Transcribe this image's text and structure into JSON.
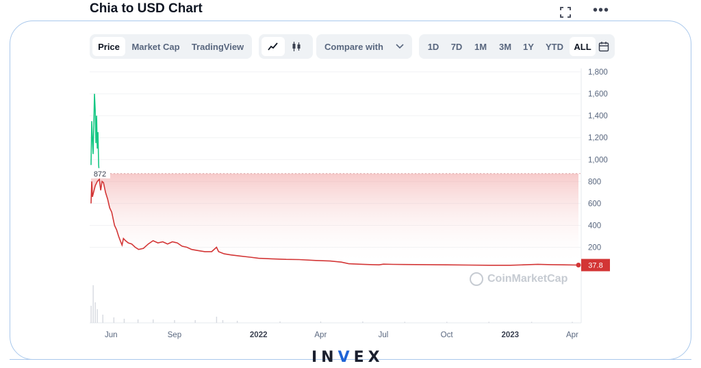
{
  "page": {
    "title": "Chia to USD Chart"
  },
  "toolbar": {
    "type_tabs": [
      "Price",
      "Market Cap",
      "TradingView"
    ],
    "active_type": "Price",
    "mode_icons": [
      "line-chart-icon",
      "candlestick-icon"
    ],
    "compare_label": "Compare with",
    "ranges": [
      "1D",
      "7D",
      "1M",
      "3M",
      "1Y",
      "YTD",
      "ALL"
    ],
    "active_range": "ALL"
  },
  "watermark": "CoinMarketCap",
  "brand": {
    "prefix": "IN",
    "mark": "V",
    "suffix": "EX"
  },
  "colors": {
    "up": "#16c784",
    "down": "#d33535",
    "reference_line": "#d9a0a0",
    "frame": "#a9c8ec",
    "brand_accent": "#1e63d6"
  },
  "chart_data": {
    "type": "line",
    "x_tick_labels": [
      "Jun",
      "Sep",
      "2022",
      "Apr",
      "Jul",
      "Oct",
      "2023",
      "Apr"
    ],
    "x_tick_dates": [
      "2021-06-01",
      "2021-09-01",
      "2022-01-01",
      "2022-04-01",
      "2022-07-01",
      "2022-10-01",
      "2023-01-01",
      "2023-04-01"
    ],
    "y_ticks": [
      200,
      400,
      600,
      800,
      1000,
      1200,
      1400,
      1600,
      1800
    ],
    "ylim": [
      -40,
      1800
    ],
    "reference_value": 872,
    "reference_label": "872",
    "current_price": 37.8,
    "current_label": "37.8",
    "grid": true,
    "series": [
      {
        "values": [
          [
            "2021-05-03",
            950
          ],
          [
            "2021-05-04",
            1350
          ],
          [
            "2021-05-05",
            1200
          ],
          [
            "2021-05-06",
            1050
          ],
          [
            "2021-05-07",
            1300
          ],
          [
            "2021-05-08",
            1600
          ],
          [
            "2021-05-09",
            1450
          ],
          [
            "2021-05-10",
            1150
          ],
          [
            "2021-05-11",
            1400
          ],
          [
            "2021-05-12",
            1100
          ],
          [
            "2021-05-13",
            1250
          ],
          [
            "2021-05-14",
            950
          ],
          [
            "2021-05-15",
            870
          ]
        ]
      },
      {
        "values": [
          [
            "2021-05-03",
            600
          ],
          [
            "2021-05-04",
            800
          ],
          [
            "2021-05-05",
            660
          ],
          [
            "2021-05-09",
            760
          ],
          [
            "2021-05-12",
            800
          ],
          [
            "2021-05-15",
            820
          ],
          [
            "2021-05-17",
            720
          ],
          [
            "2021-05-19",
            800
          ],
          [
            "2021-05-21",
            790
          ],
          [
            "2021-05-24",
            700
          ],
          [
            "2021-05-27",
            640
          ],
          [
            "2021-05-30",
            560
          ],
          [
            "2021-06-02",
            520
          ],
          [
            "2021-06-06",
            400
          ],
          [
            "2021-06-09",
            360
          ],
          [
            "2021-06-12",
            300
          ],
          [
            "2021-06-15",
            250
          ],
          [
            "2021-06-17",
            220
          ],
          [
            "2021-06-19",
            280
          ],
          [
            "2021-06-22",
            260
          ],
          [
            "2021-06-26",
            240
          ],
          [
            "2021-07-01",
            230
          ],
          [
            "2021-07-06",
            200
          ],
          [
            "2021-07-11",
            180
          ],
          [
            "2021-07-18",
            190
          ],
          [
            "2021-07-25",
            230
          ],
          [
            "2021-08-01",
            260
          ],
          [
            "2021-08-08",
            240
          ],
          [
            "2021-08-15",
            250
          ],
          [
            "2021-08-22",
            230
          ],
          [
            "2021-08-29",
            250
          ],
          [
            "2021-09-05",
            240
          ],
          [
            "2021-09-12",
            210
          ],
          [
            "2021-09-19",
            200
          ],
          [
            "2021-09-26",
            180
          ],
          [
            "2021-10-05",
            170
          ],
          [
            "2021-10-15",
            160
          ],
          [
            "2021-10-25",
            160
          ],
          [
            "2021-11-01",
            200
          ],
          [
            "2021-11-04",
            160
          ],
          [
            "2021-11-12",
            140
          ],
          [
            "2021-11-22",
            130
          ],
          [
            "2021-12-05",
            120
          ],
          [
            "2021-12-20",
            110
          ],
          [
            "2022-01-01",
            100
          ],
          [
            "2022-01-20",
            95
          ],
          [
            "2022-02-10",
            90
          ],
          [
            "2022-03-01",
            88
          ],
          [
            "2022-03-25",
            80
          ],
          [
            "2022-04-15",
            75
          ],
          [
            "2022-05-01",
            65
          ],
          [
            "2022-05-12",
            50
          ],
          [
            "2022-06-01",
            45
          ],
          [
            "2022-06-15",
            42
          ],
          [
            "2022-06-25",
            40
          ],
          [
            "2022-07-01",
            46
          ],
          [
            "2022-07-15",
            44
          ],
          [
            "2022-08-01",
            43
          ],
          [
            "2022-09-01",
            42
          ],
          [
            "2022-10-01",
            40
          ],
          [
            "2022-11-01",
            38
          ],
          [
            "2022-12-01",
            36
          ],
          [
            "2023-01-01",
            36
          ],
          [
            "2023-01-20",
            40
          ],
          [
            "2023-02-10",
            45
          ],
          [
            "2023-03-01",
            42
          ],
          [
            "2023-03-20",
            40
          ],
          [
            "2023-04-10",
            37.8
          ]
        ]
      }
    ],
    "volume": [
      [
        "2021-05-03",
        0.25
      ],
      [
        "2021-05-06",
        0.55
      ],
      [
        "2021-05-09",
        0.3
      ],
      [
        "2021-05-12",
        0.2
      ],
      [
        "2021-05-20",
        0.12
      ],
      [
        "2021-06-05",
        0.08
      ],
      [
        "2021-06-20",
        0.06
      ],
      [
        "2021-07-10",
        0.05
      ],
      [
        "2021-08-01",
        0.05
      ],
      [
        "2021-09-01",
        0.04
      ],
      [
        "2021-10-01",
        0.04
      ],
      [
        "2021-11-01",
        0.09
      ],
      [
        "2021-11-10",
        0.04
      ],
      [
        "2021-12-01",
        0.03
      ],
      [
        "2022-02-01",
        0.02
      ],
      [
        "2022-04-01",
        0.02
      ],
      [
        "2022-06-01",
        0.02
      ],
      [
        "2022-08-01",
        0.015
      ],
      [
        "2022-10-01",
        0.015
      ],
      [
        "2022-12-01",
        0.015
      ],
      [
        "2023-02-01",
        0.015
      ],
      [
        "2023-04-01",
        0.015
      ]
    ]
  }
}
